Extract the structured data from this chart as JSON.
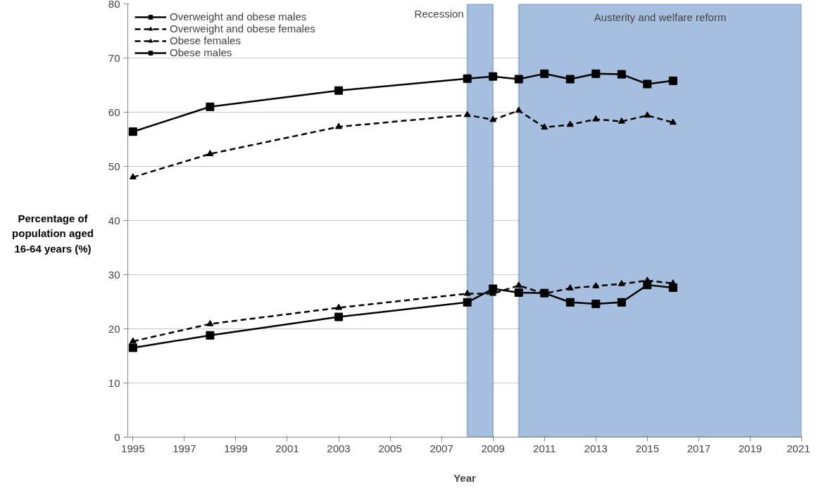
{
  "chart_data": {
    "type": "line",
    "xlabel": "Year",
    "ylabel": "Percentage of population aged 16-64 years (%)",
    "x": [
      1995,
      1998,
      2003,
      2008,
      2009,
      2010,
      2011,
      2012,
      2013,
      2014,
      2015,
      2016
    ],
    "series": [
      {
        "name": "Overweight and obese males",
        "color": "#000000",
        "marker": "square",
        "line_style": "solid",
        "values": [
          56.4,
          61.0,
          64.0,
          66.2,
          66.6,
          66.1,
          67.1,
          66.1,
          67.1,
          67.0,
          65.2,
          65.8
        ]
      },
      {
        "name": "Overweight and obese females",
        "color": "#000000",
        "marker": "triangle",
        "line_style": "dashed",
        "values": [
          48.0,
          52.3,
          57.3,
          59.5,
          58.6,
          60.3,
          57.2,
          57.7,
          58.7,
          58.3,
          59.4,
          58.1
        ]
      },
      {
        "name": "Obese females",
        "color": "#000000",
        "marker": "triangle",
        "line_style": "dashed",
        "values": [
          17.7,
          20.9,
          23.9,
          26.5,
          26.5,
          28.0,
          26.5,
          27.5,
          27.9,
          28.3,
          28.9,
          28.4
        ]
      },
      {
        "name": "Obese males",
        "color": "#000000",
        "marker": "square",
        "line_style": "solid",
        "values": [
          16.5,
          18.8,
          22.2,
          24.9,
          27.4,
          26.7,
          26.6,
          24.9,
          24.6,
          24.9,
          28.1,
          27.6
        ]
      }
    ],
    "bands": [
      {
        "axis": "x",
        "from": 2008,
        "to": 2009,
        "label": "Recession",
        "color": "#a7bfdf"
      },
      {
        "axis": "x",
        "from": 2010,
        "to": 2021,
        "label": "Austerity and welfare reform",
        "color": "#a7bfdf"
      }
    ],
    "xlim": [
      1994.8,
      2021
    ],
    "xticks": [
      1995,
      1997,
      1999,
      2001,
      2003,
      2005,
      2007,
      2009,
      2011,
      2013,
      2015,
      2017,
      2019,
      2021
    ],
    "ylim": [
      0,
      80
    ],
    "yticks": [
      0,
      10,
      20,
      30,
      40,
      50,
      60,
      70,
      80
    ],
    "grid": "y",
    "legend": "top left"
  }
}
